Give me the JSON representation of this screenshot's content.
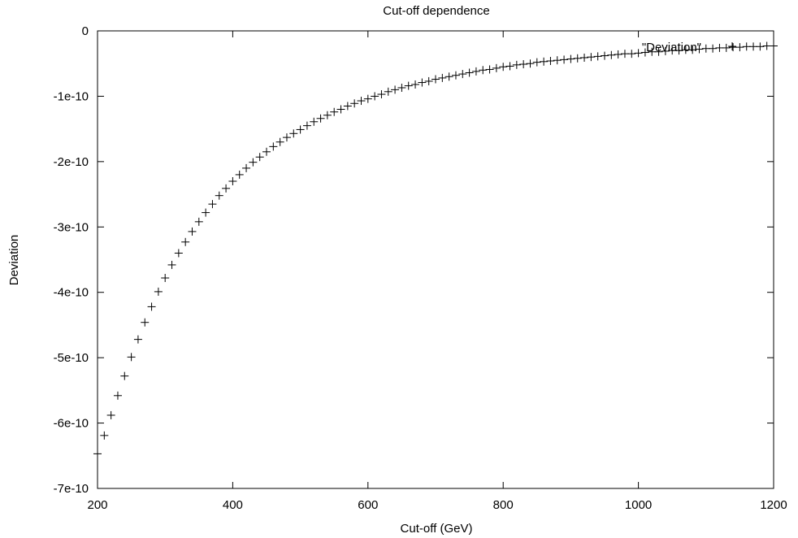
{
  "chart_data": {
    "type": "scatter",
    "title": "Cut-off dependence",
    "xlabel": "Cut-off (GeV)",
    "ylabel": "Deviation",
    "xlim": [
      200,
      1200
    ],
    "ylim": [
      -7e-10,
      0
    ],
    "x_ticks": [
      {
        "value": 200,
        "label": "200"
      },
      {
        "value": 400,
        "label": "400"
      },
      {
        "value": 600,
        "label": "600"
      },
      {
        "value": 800,
        "label": "800"
      },
      {
        "value": 1000,
        "label": "1000"
      },
      {
        "value": 1200,
        "label": "1200"
      }
    ],
    "y_ticks": [
      {
        "value": 0,
        "label": "0"
      },
      {
        "value": -1e-10,
        "label": "-1e-10"
      },
      {
        "value": -2e-10,
        "label": "-2e-10"
      },
      {
        "value": -3e-10,
        "label": "-3e-10"
      },
      {
        "value": -4e-10,
        "label": "-4e-10"
      },
      {
        "value": -5e-10,
        "label": "-5e-10"
      },
      {
        "value": -6e-10,
        "label": "-6e-10"
      },
      {
        "value": -7e-10,
        "label": "-7e-10"
      }
    ],
    "grid": false,
    "legend": {
      "position": "top-right",
      "entries": [
        "\"Deviation\""
      ]
    },
    "series": [
      {
        "name": "\"Deviation\"",
        "marker": "plus",
        "color": "#000000",
        "x": [
          200,
          210,
          220,
          230,
          240,
          250,
          260,
          270,
          280,
          290,
          300,
          310,
          320,
          330,
          340,
          350,
          360,
          370,
          380,
          390,
          400,
          410,
          420,
          430,
          440,
          450,
          460,
          470,
          480,
          490,
          500,
          510,
          520,
          530,
          540,
          550,
          560,
          570,
          580,
          590,
          600,
          610,
          620,
          630,
          640,
          650,
          660,
          670,
          680,
          690,
          700,
          710,
          720,
          730,
          740,
          750,
          760,
          770,
          780,
          790,
          800,
          810,
          820,
          830,
          840,
          850,
          860,
          870,
          880,
          890,
          900,
          910,
          920,
          930,
          940,
          950,
          960,
          970,
          980,
          990,
          1000,
          1010,
          1020,
          1030,
          1040,
          1050,
          1060,
          1070,
          1080,
          1090,
          1100,
          1110,
          1120,
          1130,
          1140,
          1150,
          1160,
          1170,
          1180,
          1190,
          1200
        ],
        "y": [
          -6.47e-10,
          -6.19e-10,
          -5.88e-10,
          -5.58e-10,
          -5.28e-10,
          -4.99e-10,
          -4.72e-10,
          -4.46e-10,
          -4.22e-10,
          -3.99e-10,
          -3.78e-10,
          -3.58e-10,
          -3.4e-10,
          -3.23e-10,
          -3.07e-10,
          -2.92e-10,
          -2.78e-10,
          -2.65e-10,
          -2.52e-10,
          -2.41e-10,
          -2.3e-10,
          -2.2e-10,
          -2.1e-10,
          -2.01e-10,
          -1.93e-10,
          -1.85e-10,
          -1.77e-10,
          -1.7e-10,
          -1.63e-10,
          -1.57e-10,
          -1.51e-10,
          -1.45e-10,
          -1.39e-10,
          -1.34e-10,
          -1.29e-10,
          -1.24e-10,
          -1.2e-10,
          -1.15e-10,
          -1.11e-10,
          -1.07e-10,
          -1.04e-10,
          -1e-10,
          -9.7e-11,
          -9.3e-11,
          -9e-11,
          -8.7e-11,
          -8.4e-11,
          -8.2e-11,
          -7.9e-11,
          -7.7e-11,
          -7.4e-11,
          -7.2e-11,
          -7e-11,
          -6.8e-11,
          -6.6e-11,
          -6.4e-11,
          -6.2e-11,
          -6e-11,
          -5.9e-11,
          -5.7e-11,
          -5.5e-11,
          -5.4e-11,
          -5.2e-11,
          -5.1e-11,
          -5e-11,
          -4.8e-11,
          -4.7e-11,
          -4.6e-11,
          -4.5e-11,
          -4.4e-11,
          -4.3e-11,
          -4.2e-11,
          -4.1e-11,
          -4e-11,
          -3.9e-11,
          -3.8e-11,
          -3.7e-11,
          -3.6e-11,
          -3.5e-11,
          -3.5e-11,
          -3.4e-11,
          -3.3e-11,
          -3.2e-11,
          -3.2e-11,
          -3.1e-11,
          -3e-11,
          -3e-11,
          -2.9e-11,
          -2.9e-11,
          -2.8e-11,
          -2.7e-11,
          -2.7e-11,
          -2.6e-11,
          -2.6e-11,
          -2.5e-11,
          -2.5e-11,
          -2.4e-11,
          -2.4e-11,
          -2.4e-11,
          -2.3e-11,
          -2.3e-11
        ]
      }
    ]
  }
}
